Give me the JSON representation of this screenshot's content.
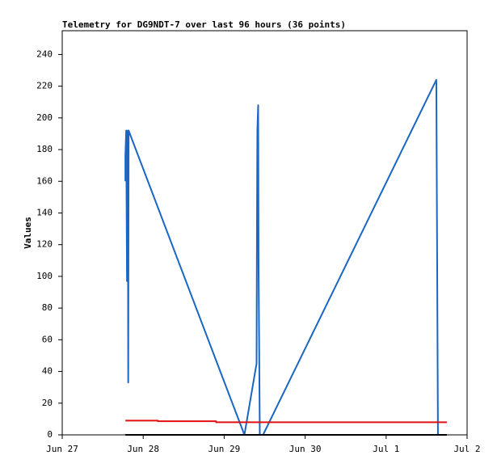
{
  "chart_data": {
    "type": "line",
    "title": "Telemetry for DG9NDT-7 over last 96 hours (36 points)",
    "y_label": "Values",
    "xlim": [
      0,
      5
    ],
    "ylim": [
      0,
      255
    ],
    "xticks": [
      {
        "value": 0,
        "label": "Jun 27"
      },
      {
        "value": 1,
        "label": "Jun 28"
      },
      {
        "value": 2,
        "label": "Jun 29"
      },
      {
        "value": 3,
        "label": "Jun 30"
      },
      {
        "value": 4,
        "label": "Jul 1"
      },
      {
        "value": 5,
        "label": "Jul 2"
      }
    ],
    "yticks": [
      0,
      20,
      40,
      60,
      80,
      100,
      120,
      140,
      160,
      180,
      200,
      220,
      240
    ],
    "grid": false,
    "series": [
      {
        "color": "#1a66c4",
        "x": [
          0.78,
          0.78,
          0.79,
          0.8,
          0.81,
          0.815,
          0.82,
          2.25,
          2.4,
          2.405,
          2.41,
          2.42,
          2.425,
          2.44,
          2.48,
          4.62,
          4.63,
          4.64,
          4.75
        ],
        "values": [
          160,
          176,
          192,
          97,
          192,
          33,
          192,
          0,
          45,
          132,
          192,
          208,
          105,
          0,
          0,
          224,
          112,
          0,
          0
        ]
      },
      {
        "color": "#e01010",
        "x": [
          0.78,
          1.18,
          1.18,
          1.9,
          1.9,
          4.75
        ],
        "values": [
          9,
          9,
          8.6,
          8.6,
          8,
          8
        ]
      },
      {
        "color": "#000000",
        "x": [
          0.78,
          4.75
        ],
        "values": [
          0,
          0
        ]
      }
    ]
  }
}
